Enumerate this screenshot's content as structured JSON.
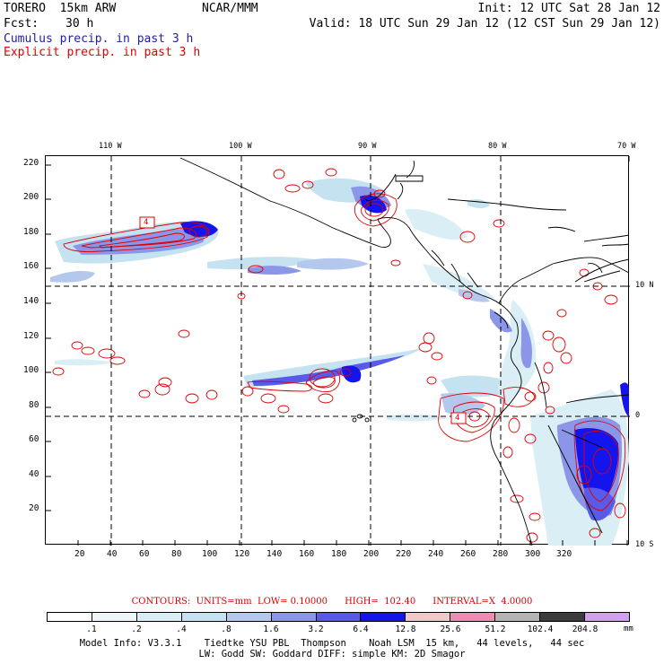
{
  "header": {
    "model": "TORERO  15km ARW",
    "org": "NCAR/MMM",
    "init": "Init: 12 UTC Sat 28 Jan 12",
    "fcst_label": "Fcst:",
    "fcst_value": "30 h",
    "valid": "Valid: 18 UTC Sun 29 Jan 12 (12 CST Sun 29 Jan 12)",
    "cumulus_label": "Cumulus precip. in past 3 h",
    "explicit_label": "Explicit precip. in past 3 h",
    "cumulus_color": "#2020a0",
    "explicit_color": "#e00000"
  },
  "map": {
    "x_ticks": [
      "20",
      "40",
      "60",
      "80",
      "100",
      "120",
      "140",
      "160",
      "180",
      "200",
      "220",
      "240",
      "260",
      "280",
      "300",
      "320"
    ],
    "y_ticks": [
      "220",
      "200",
      "180",
      "160",
      "140",
      "120",
      "100",
      "80",
      "60",
      "40",
      "20"
    ],
    "lon_labels": [
      "110 W",
      "100 W",
      "90 W",
      "80 W",
      "70 W"
    ],
    "lat_labels": [
      "10 N",
      "0",
      "10 S"
    ],
    "box_labels": [
      "4",
      "4"
    ]
  },
  "contours": {
    "text": "CONTOURS:  UNITS=mm  LOW= 0.10000      HIGH=  102.40      INTERVAL=X  4.0000",
    "color": "#d00000"
  },
  "colorbar": {
    "colors": [
      "#ffffff",
      "#eef6fa",
      "#daeef6",
      "#c4e2f0",
      "#b4c8ee",
      "#8c96e8",
      "#5a5ae8",
      "#1414ee",
      "#f0c8c8",
      "#f08cb4",
      "#b4b4b4",
      "#3c3c3c",
      "#d2a0f0"
    ],
    "labels": [
      ".1",
      ".2",
      ".4",
      ".8",
      "1.6",
      "3.2",
      "6.4",
      "12.8",
      "25.6",
      "51.2",
      "102.4",
      "204.8"
    ],
    "units": "mm"
  },
  "model_info": {
    "line1": "Model Info: V3.3.1    Tiedtke YSU PBL  Thompson    Noah LSM  15 km,   44 levels,   44 sec",
    "line2": "LW: Godd SW: Goddard DIFF: simple KM: 2D Smagor"
  }
}
